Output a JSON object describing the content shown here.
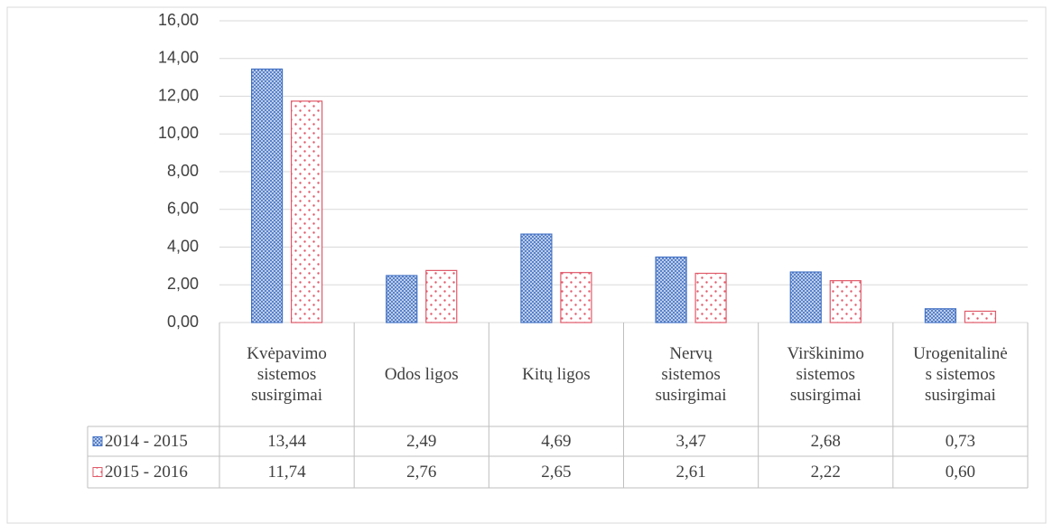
{
  "chart_data": {
    "type": "bar",
    "categories": [
      "Kvėpavimo sistemos susirgimai",
      "Odos ligos",
      "Kitų ligos",
      "Nervų sistemos susirgimai",
      "Virškinimo sistemos susirgimai",
      "Urogenitalinės sistemos susirgimai"
    ],
    "series": [
      {
        "name": "2014 - 2015",
        "color": "#4472c4",
        "values": [
          13.44,
          2.49,
          4.69,
          3.47,
          2.68,
          0.73
        ],
        "value_labels": [
          "13,44",
          "2,49",
          "4,69",
          "3,47",
          "2,68",
          "0,73"
        ]
      },
      {
        "name": "2015 - 2016",
        "color": "#e05a6a",
        "values": [
          11.74,
          2.76,
          2.65,
          2.61,
          2.22,
          0.6
        ],
        "value_labels": [
          "11,74",
          "2,76",
          "2,65",
          "2,61",
          "2,22",
          "0,60"
        ]
      }
    ],
    "ylim": [
      0,
      16
    ],
    "yticks": [
      {
        "value": 0,
        "label": "0,00"
      },
      {
        "value": 2,
        "label": "2,00"
      },
      {
        "value": 4,
        "label": "4,00"
      },
      {
        "value": 6,
        "label": "6,00"
      },
      {
        "value": 8,
        "label": "8,00"
      },
      {
        "value": 10,
        "label": "10,00"
      },
      {
        "value": 12,
        "label": "12,00"
      },
      {
        "value": 14,
        "label": "14,00"
      },
      {
        "value": 16,
        "label": "16,00"
      }
    ],
    "grid": true
  }
}
